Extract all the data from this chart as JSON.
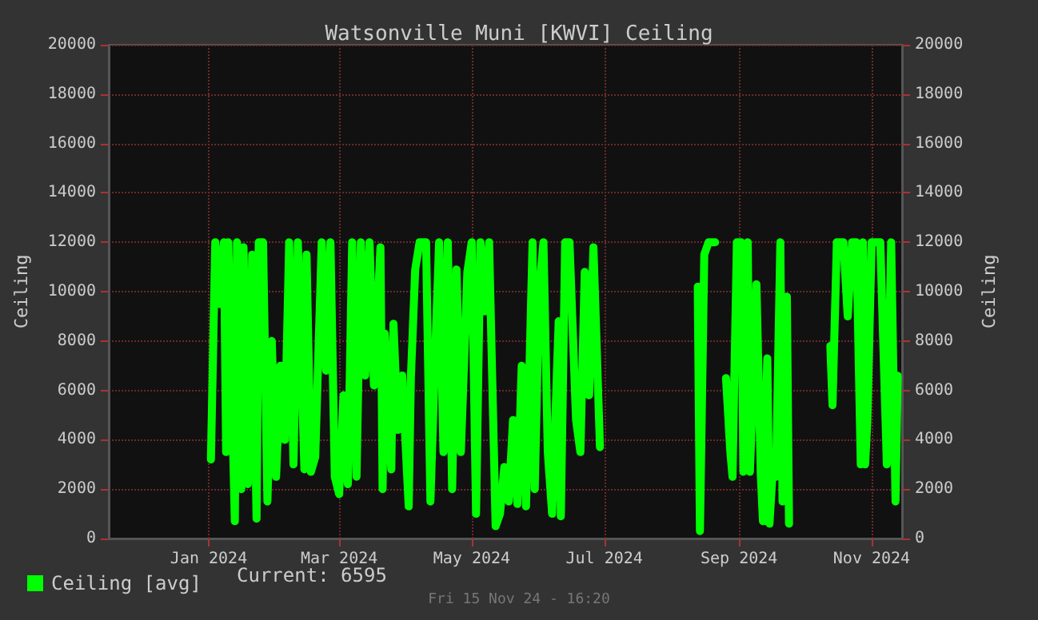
{
  "chart_data": {
    "type": "line",
    "title": "Watsonville Muni [KWVI] Ceiling",
    "ylabel": "Ceiling",
    "y2label": "Ceiling",
    "annotations": [
      "Current: 6595",
      "Fri 15 Nov 24 - 16:20"
    ],
    "x": [
      "2024-01-02",
      "2024-01-04",
      "2024-01-06",
      "2024-01-08",
      "2024-01-09",
      "2024-01-10",
      "2024-01-13",
      "2024-01-14",
      "2024-01-16",
      "2024-01-17",
      "2024-01-19",
      "2024-01-21",
      "2024-01-23",
      "2024-01-24",
      "2024-01-26",
      "2024-01-28",
      "2024-01-30",
      "2024-02-01",
      "2024-02-03",
      "2024-02-05",
      "2024-02-07",
      "2024-02-09",
      "2024-02-11",
      "2024-02-14",
      "2024-02-15",
      "2024-02-17",
      "2024-02-19",
      "2024-02-22",
      "2024-02-24",
      "2024-02-26",
      "2024-02-28",
      "2024-03-01",
      "2024-03-03",
      "2024-03-05",
      "2024-03-07",
      "2024-03-09",
      "2024-03-11",
      "2024-03-13",
      "2024-03-15",
      "2024-03-17",
      "2024-03-20",
      "2024-03-21",
      "2024-03-22",
      "2024-03-25",
      "2024-03-26",
      "2024-03-28",
      "2024-03-30",
      "2024-04-02",
      "2024-04-03",
      "2024-04-05",
      "2024-04-07",
      "2024-04-10",
      "2024-04-12",
      "2024-04-14",
      "2024-04-16",
      "2024-04-18",
      "2024-04-20",
      "2024-04-22",
      "2024-04-24",
      "2024-04-26",
      "2024-04-29",
      "2024-05-01",
      "2024-05-03",
      "2024-05-05",
      "2024-05-07",
      "2024-05-09",
      "2024-05-12",
      "2024-05-14",
      "2024-05-16",
      "2024-05-18",
      "2024-05-20",
      "2024-05-22",
      "2024-05-24",
      "2024-05-26",
      "2024-05-29",
      "2024-05-30",
      "2024-06-01",
      "2024-06-03",
      "2024-06-05",
      "2024-06-07",
      "2024-06-10",
      "2024-06-11",
      "2024-06-13",
      "2024-06-15",
      "2024-06-18",
      "2024-06-20",
      "2024-06-22",
      "2024-06-24",
      "2024-06-26",
      "2024-06-29",
      "2024-07-20",
      "2024-08-13",
      "2024-08-14",
      "2024-08-16",
      "2024-08-18",
      "2024-08-21",
      "2024-08-23",
      "2024-08-26",
      "2024-08-28",
      "2024-08-29",
      "2024-08-31",
      "2024-09-02",
      "2024-09-03",
      "2024-09-05",
      "2024-09-06",
      "2024-09-08",
      "2024-09-09",
      "2024-09-11",
      "2024-09-12",
      "2024-09-14",
      "2024-09-15",
      "2024-09-17",
      "2024-09-18",
      "2024-09-20",
      "2024-09-21",
      "2024-09-23",
      "2024-09-24",
      "2024-10-05",
      "2024-10-13",
      "2024-10-14",
      "2024-10-16",
      "2024-10-19",
      "2024-10-21",
      "2024-10-23",
      "2024-10-25",
      "2024-10-27",
      "2024-10-28",
      "2024-10-29",
      "2024-10-30",
      "2024-11-01",
      "2024-11-05",
      "2024-11-08",
      "2024-11-10",
      "2024-11-12",
      "2024-11-13"
    ],
    "series": [
      {
        "name": "Ceiling [avg]",
        "color": "#00ff00",
        "values": [
          3200,
          12000,
          9500,
          12000,
          3500,
          12000,
          700,
          12000,
          2000,
          11800,
          2200,
          11500,
          800,
          12000,
          12000,
          1500,
          8000,
          2500,
          7000,
          4000,
          12000,
          3000,
          12000,
          2800,
          11500,
          2700,
          3300,
          12000,
          6800,
          12000,
          2500,
          1800,
          5800,
          2200,
          12000,
          2500,
          12000,
          6600,
          12000,
          6200,
          11800,
          2000,
          8300,
          2800,
          8700,
          4400,
          6600,
          1300,
          6500,
          10900,
          12000,
          12000,
          1500,
          7000,
          12000,
          3500,
          12000,
          2000,
          10900,
          3500,
          10800,
          12000,
          1000,
          12000,
          9200,
          12000,
          500,
          1000,
          2900,
          1500,
          4800,
          1400,
          7000,
          1300,
          12000,
          2000,
          10000,
          12000,
          3500,
          1000,
          8800,
          900,
          12000,
          12000,
          4800,
          3500,
          10800,
          5800,
          11800,
          3700,
          null,
          10200,
          300,
          11500,
          12000,
          12000,
          null,
          6500,
          3500,
          2500,
          12000,
          12000,
          2700,
          12000,
          2700,
          7500,
          10300,
          2600,
          700,
          7300,
          600,
          3500,
          2500,
          12000,
          1500,
          9800,
          600,
          null,
          7800,
          5400,
          12000,
          12000,
          9000,
          12000,
          12000,
          3000,
          12000,
          3000,
          4700,
          12000,
          12000,
          3000,
          12000,
          1500,
          6595
        ]
      }
    ],
    "xlim": [
      "2023-11-16",
      "2024-11-15"
    ],
    "xticks": [
      {
        "value": "2024-01-01",
        "label": "Jan 2024"
      },
      {
        "value": "2024-03-01",
        "label": "Mar 2024"
      },
      {
        "value": "2024-05-01",
        "label": "May 2024"
      },
      {
        "value": "2024-07-01",
        "label": "Jul 2024"
      },
      {
        "value": "2024-09-01",
        "label": "Sep 2024"
      },
      {
        "value": "2024-11-01",
        "label": "Nov 2024"
      }
    ],
    "ylim": [
      0,
      20000
    ],
    "yticks": [
      0,
      2000,
      4000,
      6000,
      8000,
      10000,
      12000,
      14000,
      16000,
      18000,
      20000
    ],
    "y2lim": [
      0,
      20000
    ],
    "y2ticks": [
      0,
      2000,
      4000,
      6000,
      8000,
      10000,
      12000,
      14000,
      16000,
      18000,
      20000
    ],
    "grid": true,
    "legend": "bottom left",
    "marker": "none",
    "line_style": "solid"
  }
}
